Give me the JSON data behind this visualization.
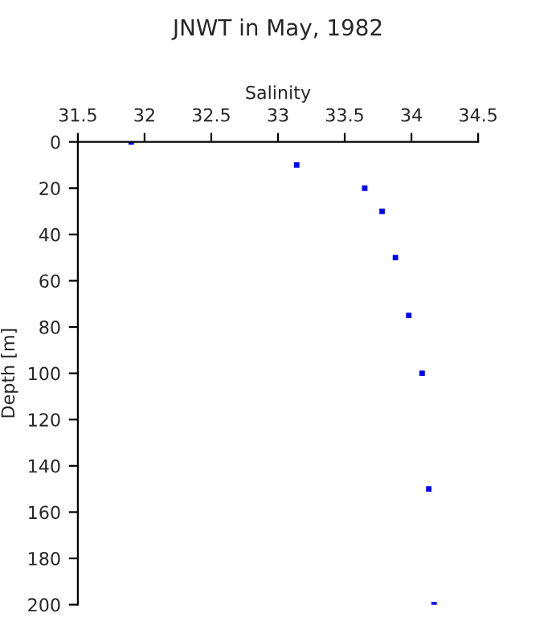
{
  "chart_data": {
    "type": "scatter",
    "title": "JNWT in May, 1982",
    "xlabel": "Salinity",
    "ylabel": "Depth [m]",
    "x": [
      31.9,
      33.14,
      33.65,
      33.78,
      33.88,
      33.98,
      34.08,
      34.13,
      34.17
    ],
    "values": [
      0,
      10,
      20,
      30,
      50,
      75,
      100,
      150,
      200
    ],
    "color": "#0000ff",
    "marker": "square",
    "xlim": [
      31.5,
      34.5
    ],
    "xticks": [
      31.5,
      32,
      32.5,
      33,
      33.5,
      34,
      34.5
    ],
    "ylim": [
      200,
      0
    ],
    "yticks": [
      0,
      20,
      40,
      60,
      80,
      100,
      120,
      140,
      160,
      180,
      200
    ],
    "grid": false,
    "legend": false
  }
}
